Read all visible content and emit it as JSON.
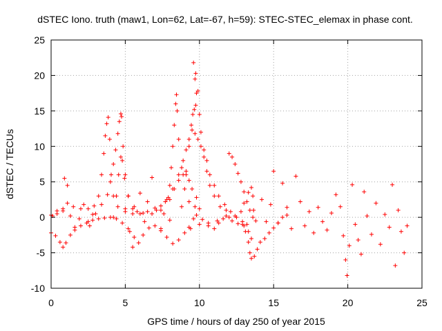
{
  "chart_data": {
    "type": "scatter",
    "title": "dSTEC Iono. truth (maw1, Lon=62, Lat=-67, h=59): STEC-STEC_elemax in phase cont.",
    "xlabel": "GPS time / hours of day 250 of year 2015",
    "ylabel": "dSTEC  / TECUs",
    "xlim": [
      0,
      25
    ],
    "ylim": [
      -10,
      25
    ],
    "xticks": [
      0,
      5,
      10,
      15,
      20,
      25
    ],
    "yticks": [
      -10,
      -5,
      0,
      5,
      10,
      15,
      20,
      25
    ],
    "grid": true,
    "marker": "plus",
    "color": "#ff0000",
    "series": [
      {
        "values": [
          [
            0.0,
            -2.2
          ],
          [
            0.3,
            -2.6
          ],
          [
            0.6,
            -3.5
          ],
          [
            0.8,
            -4.2
          ],
          [
            1.0,
            -3.6
          ],
          [
            1.3,
            -2.5
          ],
          [
            1.6,
            -1.8
          ],
          [
            2.0,
            -1.2
          ],
          [
            2.4,
            -0.8
          ],
          [
            2.8,
            -0.4
          ],
          [
            3.2,
            -0.2
          ],
          [
            3.6,
            -0.1
          ],
          [
            4.0,
            0.0
          ],
          [
            4.4,
            -0.2
          ],
          [
            4.8,
            -0.8
          ],
          [
            5.2,
            -1.6
          ],
          [
            5.6,
            -2.8
          ],
          [
            5.9,
            -3.6
          ],
          [
            6.2,
            -2.5
          ],
          [
            6.6,
            -1.5
          ],
          [
            7.0,
            -1.2
          ],
          [
            7.4,
            -1.9
          ],
          [
            7.8,
            -2.8
          ],
          [
            8.2,
            -3.7
          ],
          [
            8.6,
            -3.2
          ],
          [
            9.0,
            -2.2
          ],
          [
            9.3,
            -1.4
          ],
          [
            9.6,
            -0.2
          ],
          [
            9.8,
            0.3
          ],
          [
            10.2,
            -0.3
          ],
          [
            10.6,
            -1.2
          ],
          [
            11.0,
            -1.6
          ],
          [
            11.3,
            -0.8
          ]
        ]
      },
      {
        "values": [
          [
            0.1,
            0.2
          ],
          [
            0.4,
            0.5
          ],
          [
            0.8,
            0.9
          ],
          [
            1.1,
            2.0
          ],
          [
            1.5,
            1.5
          ],
          [
            2.0,
            1.2
          ],
          [
            2.5,
            1.2
          ],
          [
            2.9,
            1.6
          ],
          [
            3.2,
            3.0
          ],
          [
            3.4,
            6.0
          ],
          [
            3.55,
            9.0
          ],
          [
            3.65,
            11.5
          ],
          [
            3.75,
            13.2
          ],
          [
            3.85,
            14.1
          ],
          [
            3.95,
            11.0
          ],
          [
            4.05,
            6.0
          ],
          [
            4.2,
            3.0
          ],
          [
            4.5,
            1.5
          ],
          [
            5.0,
            0.8
          ],
          [
            5.5,
            0.5
          ]
        ]
      },
      {
        "values": [
          [
            2.6,
            -1.2
          ],
          [
            3.0,
            0.5
          ],
          [
            3.4,
            1.8
          ],
          [
            3.8,
            3.2
          ],
          [
            4.0,
            5.0
          ],
          [
            4.2,
            7.5
          ],
          [
            4.35,
            9.5
          ],
          [
            4.5,
            11.8
          ],
          [
            4.6,
            13.5
          ],
          [
            4.7,
            14.6
          ],
          [
            4.75,
            14.2
          ],
          [
            4.85,
            10.0
          ],
          [
            5.0,
            6.0
          ],
          [
            5.2,
            3.0
          ],
          [
            5.5,
            1.2
          ],
          [
            6.0,
            0.5
          ],
          [
            6.5,
            0.8
          ],
          [
            7.0,
            1.3
          ],
          [
            7.4,
            1.6
          ],
          [
            7.8,
            2.5
          ],
          [
            8.0,
            4.5
          ],
          [
            8.1,
            7.0
          ],
          [
            8.2,
            10.0
          ],
          [
            8.3,
            13.0
          ],
          [
            8.4,
            16.0
          ],
          [
            8.45,
            17.3
          ],
          [
            8.5,
            15.0
          ],
          [
            8.6,
            11.0
          ],
          [
            8.8,
            7.0
          ],
          [
            9.0,
            4.0
          ],
          [
            9.3,
            2.2
          ],
          [
            9.7,
            1.5
          ],
          [
            10.0,
            1.2
          ]
        ]
      },
      {
        "values": [
          [
            4.2,
            0.0
          ],
          [
            4.4,
            3.0
          ],
          [
            4.55,
            6.0
          ],
          [
            4.7,
            8.5
          ],
          [
            4.8,
            8.0
          ],
          [
            4.95,
            5.5
          ],
          [
            5.2,
            3.0
          ],
          [
            5.6,
            1.5
          ],
          [
            6.2,
            0.6
          ],
          [
            6.8,
            0.5
          ],
          [
            7.4,
            1.0
          ],
          [
            7.9,
            2.8
          ],
          [
            8.2,
            4.0
          ],
          [
            8.6,
            5.2
          ],
          [
            8.9,
            6.0
          ],
          [
            9.1,
            6.5
          ],
          [
            9.3,
            5.2
          ],
          [
            9.5,
            4.0
          ],
          [
            9.8,
            2.8
          ]
        ]
      },
      {
        "values": [
          [
            7.6,
            0.5
          ],
          [
            8.0,
            2.5
          ],
          [
            8.3,
            4.0
          ],
          [
            8.6,
            6.0
          ],
          [
            8.9,
            8.0
          ],
          [
            9.1,
            9.5
          ],
          [
            9.3,
            11.0
          ],
          [
            9.5,
            12.3
          ],
          [
            9.7,
            11.8
          ],
          [
            9.9,
            11.0
          ],
          [
            10.1,
            10.0
          ],
          [
            10.3,
            8.5
          ],
          [
            10.5,
            6.5
          ],
          [
            10.7,
            4.5
          ],
          [
            11.0,
            3.0
          ],
          [
            11.4,
            1.5
          ],
          [
            11.8,
            0.2
          ],
          [
            12.2,
            -0.5
          ],
          [
            12.6,
            -0.9
          ],
          [
            13.0,
            -1.2
          ],
          [
            13.3,
            -2.0
          ],
          [
            13.5,
            -3.0
          ]
        ]
      },
      {
        "values": [
          [
            8.8,
            1.5
          ],
          [
            9.1,
            6.0
          ],
          [
            9.3,
            10.0
          ],
          [
            9.45,
            13.0
          ],
          [
            9.55,
            14.5
          ],
          [
            9.65,
            15.2
          ],
          [
            9.75,
            15.8
          ],
          [
            9.8,
            17.5
          ],
          [
            9.7,
            19.5
          ],
          [
            9.6,
            21.8
          ],
          [
            9.75,
            20.3
          ],
          [
            9.9,
            17.8
          ],
          [
            10.0,
            14.5
          ],
          [
            10.1,
            12.0
          ],
          [
            10.3,
            9.5
          ],
          [
            10.5,
            8.0
          ],
          [
            10.7,
            6.0
          ],
          [
            11.0,
            4.5
          ],
          [
            11.3,
            3.0
          ],
          [
            11.7,
            1.8
          ],
          [
            12.1,
            0.8
          ],
          [
            12.5,
            0.0
          ],
          [
            12.9,
            -0.6
          ],
          [
            13.2,
            -1.0
          ]
        ]
      },
      {
        "values": [
          [
            11.8,
            1.0
          ],
          [
            12.0,
            9.0
          ],
          [
            12.2,
            8.5
          ],
          [
            12.4,
            7.5
          ],
          [
            12.6,
            6.2
          ],
          [
            12.8,
            5.0
          ],
          [
            13.0,
            3.6
          ],
          [
            13.2,
            2.2
          ],
          [
            13.4,
            1.0
          ],
          [
            13.6,
            0.0
          ],
          [
            13.8,
            -0.5
          ]
        ]
      },
      {
        "values": [
          [
            9.4,
            -1.6
          ],
          [
            10.0,
            -1.0
          ],
          [
            10.6,
            -0.8
          ],
          [
            11.2,
            -0.5
          ],
          [
            11.6,
            -0.2
          ],
          [
            12.0,
            0.0
          ],
          [
            12.4,
            0.2
          ],
          [
            12.8,
            0.8
          ],
          [
            13.0,
            2.0
          ],
          [
            13.3,
            3.5
          ],
          [
            13.5,
            4.2
          ],
          [
            13.6,
            3.0
          ],
          [
            13.65,
            1.0
          ]
        ]
      },
      {
        "values": [
          [
            12.9,
            -1.0
          ],
          [
            13.1,
            -2.0
          ],
          [
            13.3,
            -3.5
          ],
          [
            13.4,
            -5.0
          ],
          [
            13.5,
            -5.8
          ],
          [
            13.7,
            -5.5
          ],
          [
            13.9,
            -4.5
          ],
          [
            14.1,
            -3.5
          ],
          [
            14.4,
            -3.0
          ],
          [
            14.7,
            -2.2
          ],
          [
            15.0,
            -1.5
          ],
          [
            15.3,
            -0.8
          ],
          [
            15.6,
            0.0
          ],
          [
            15.9,
            0.3
          ]
        ]
      },
      {
        "values": [
          [
            0.0,
            0.3
          ],
          [
            0.4,
            0.9
          ],
          [
            0.8,
            1.2
          ],
          [
            0.9,
            5.5
          ],
          [
            1.1,
            4.5
          ],
          [
            1.3,
            0.2
          ],
          [
            1.6,
            -1.4
          ],
          [
            1.9,
            -0.2
          ],
          [
            2.2,
            1.8
          ],
          [
            2.5,
            -0.6
          ],
          [
            2.8,
            0.4
          ],
          [
            5.0,
            1.2
          ],
          [
            5.3,
            -2.0
          ],
          [
            5.5,
            -4.2
          ],
          [
            5.8,
            0.8
          ],
          [
            6.0,
            3.4
          ],
          [
            6.3,
            -0.6
          ],
          [
            6.5,
            2.2
          ],
          [
            6.8,
            5.6
          ],
          [
            7.1,
            1.0
          ],
          [
            7.4,
            -1.6
          ],
          [
            7.7,
            2.2
          ],
          [
            8.0,
            -0.4
          ]
        ]
      },
      {
        "values": [
          [
            14.2,
            2.5
          ],
          [
            14.5,
            -0.6
          ],
          [
            14.8,
            1.8
          ],
          [
            15.0,
            6.5
          ],
          [
            15.3,
            -0.8
          ],
          [
            15.6,
            4.8
          ],
          [
            15.9,
            1.4
          ],
          [
            16.2,
            -1.6
          ],
          [
            16.5,
            5.8
          ],
          [
            16.8,
            2.2
          ],
          [
            17.1,
            -1.2
          ],
          [
            17.4,
            0.8
          ],
          [
            17.7,
            -2.2
          ],
          [
            18.0,
            1.4
          ],
          [
            18.3,
            -0.6
          ],
          [
            18.6,
            -1.8
          ],
          [
            18.9,
            0.6
          ],
          [
            19.2,
            3.2
          ],
          [
            19.5,
            1.5
          ],
          [
            19.7,
            -2.6
          ],
          [
            19.85,
            -6.0
          ],
          [
            19.95,
            -8.2
          ],
          [
            20.1,
            -4.0
          ],
          [
            20.3,
            4.6
          ],
          [
            20.5,
            -1.0
          ],
          [
            20.7,
            -3.2
          ],
          [
            20.9,
            -5.2
          ],
          [
            21.1,
            3.6
          ],
          [
            21.3,
            0.2
          ],
          [
            21.6,
            -2.4
          ],
          [
            21.9,
            2.0
          ],
          [
            22.2,
            -3.8
          ],
          [
            22.5,
            0.4
          ],
          [
            22.8,
            -1.4
          ],
          [
            23.0,
            4.6
          ],
          [
            23.2,
            -6.8
          ],
          [
            23.4,
            1.0
          ],
          [
            23.6,
            -2.0
          ],
          [
            23.8,
            -5.0
          ],
          [
            24.0,
            -1.2
          ]
        ]
      }
    ]
  }
}
